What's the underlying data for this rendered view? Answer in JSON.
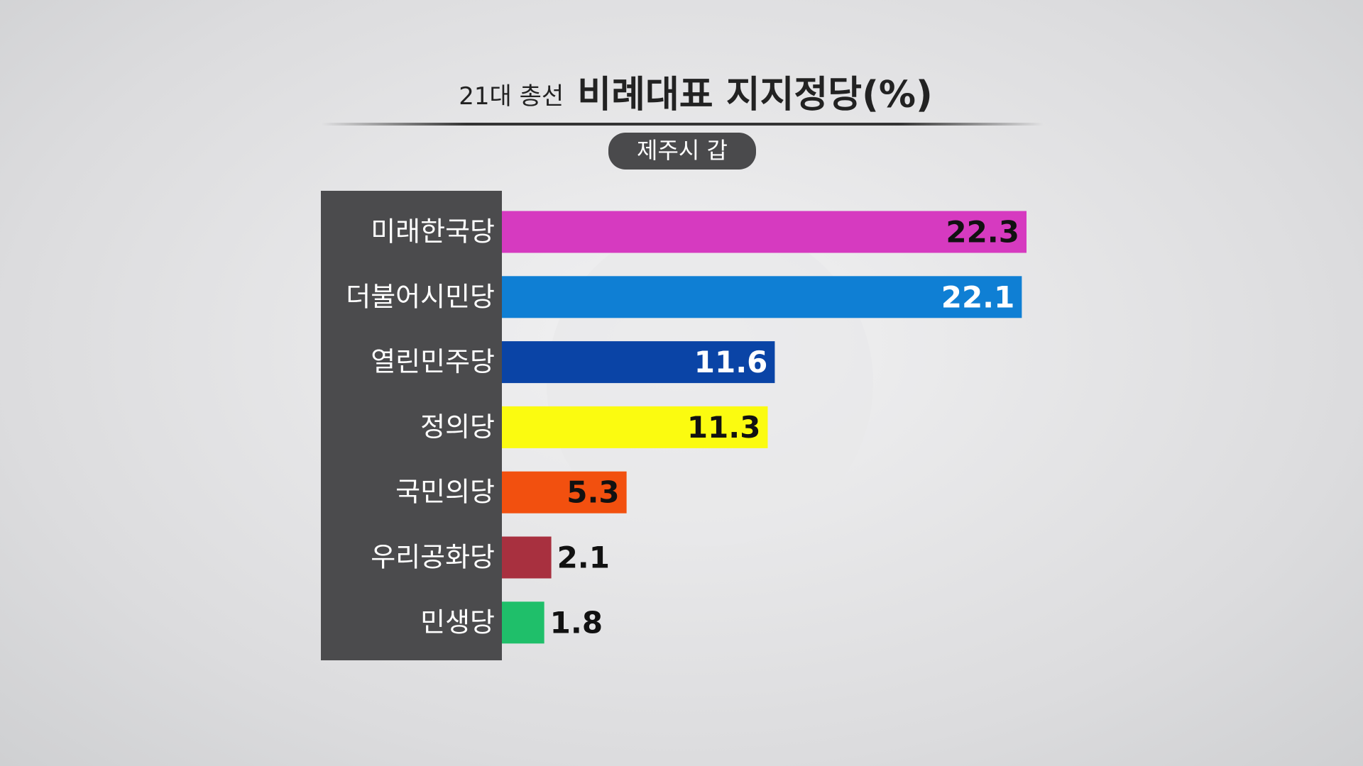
{
  "chart_data": {
    "type": "bar",
    "orientation": "horizontal",
    "title_prefix": "21대 총선",
    "title": "비례대표 지지정당(%)",
    "subtitle": "제주시 갑",
    "categories": [
      "미래한국당",
      "더불어시민당",
      "열린민주당",
      "정의당",
      "국민의당",
      "우리공화당",
      "민생당"
    ],
    "values": [
      22.3,
      22.1,
      11.6,
      11.3,
      5.3,
      2.1,
      1.8
    ],
    "colors": [
      "#d63ac0",
      "#0f7fd4",
      "#0a44a6",
      "#fbfb10",
      "#f2500f",
      "#a8303f",
      "#1fbf6a"
    ]
  }
}
